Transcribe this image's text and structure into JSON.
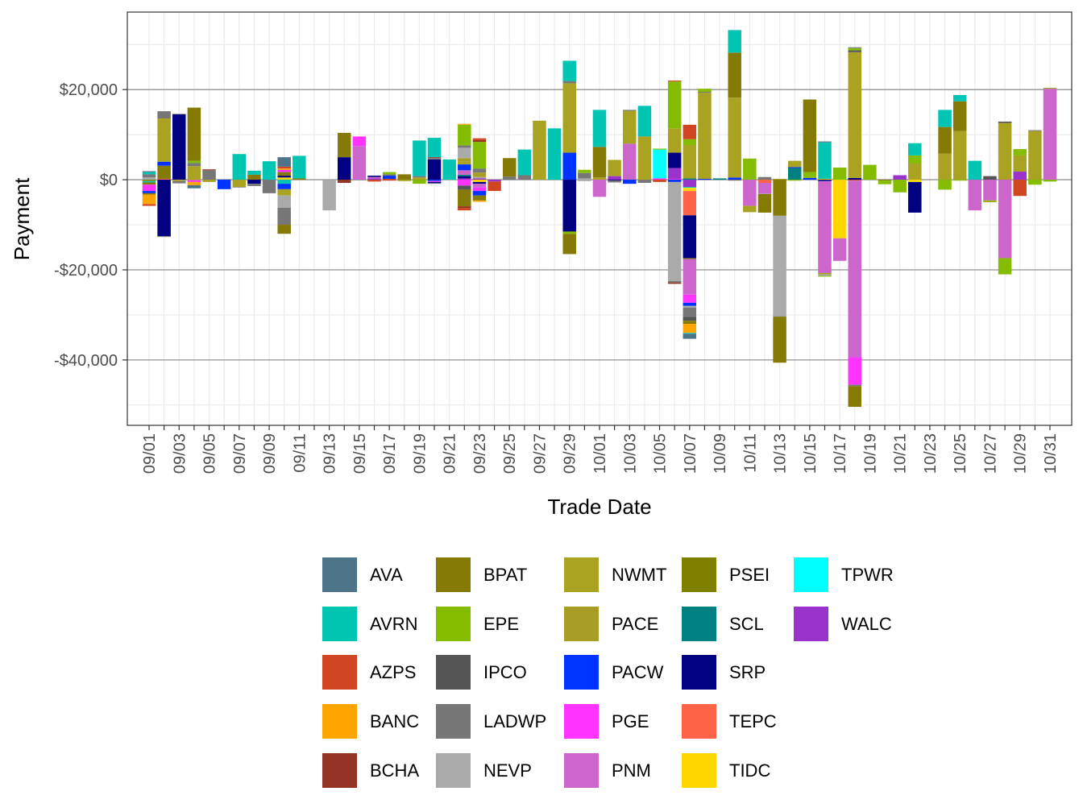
{
  "chart_data": {
    "type": "bar",
    "stacked": true,
    "xlabel": "Trade Date",
    "ylabel": "Payment",
    "ylim": [
      -54500,
      37200
    ],
    "y_ticks": [
      20000,
      0,
      -20000,
      -40000
    ],
    "y_tick_labels": [
      "$20,000",
      "$0",
      "-$20,000",
      "-$40,000"
    ],
    "grid": true,
    "legend_position": "bottom",
    "categories": [
      "09/01",
      "09/02",
      "09/03",
      "09/04",
      "09/05",
      "09/06",
      "09/07",
      "09/08",
      "09/09",
      "09/10",
      "09/11",
      "09/12",
      "09/13",
      "09/14",
      "09/15",
      "09/16",
      "09/17",
      "09/18",
      "09/19",
      "09/20",
      "09/21",
      "09/22",
      "09/23",
      "09/24",
      "09/25",
      "09/26",
      "09/27",
      "09/28",
      "09/29",
      "09/30",
      "10/01",
      "10/02",
      "10/03",
      "10/04",
      "10/05",
      "10/06",
      "10/07",
      "10/08",
      "10/09",
      "10/10",
      "10/11",
      "10/12",
      "10/13",
      "10/14",
      "10/15",
      "10/16",
      "10/17",
      "10/18",
      "10/19",
      "10/20",
      "10/21",
      "10/22",
      "10/23",
      "10/24",
      "10/25",
      "10/26",
      "10/27",
      "10/28",
      "10/29",
      "10/30",
      "10/31"
    ],
    "x_tick_labels": [
      "09/01",
      "09/03",
      "09/05",
      "09/07",
      "09/09",
      "09/11",
      "09/13",
      "09/15",
      "09/17",
      "09/19",
      "09/21",
      "09/23",
      "09/25",
      "09/27",
      "09/29",
      "10/01",
      "10/03",
      "10/05",
      "10/07",
      "10/09",
      "10/11",
      "10/13",
      "10/15",
      "10/17",
      "10/19",
      "10/21",
      "10/23",
      "10/25",
      "10/27",
      "10/29",
      "10/31"
    ],
    "series": [
      {
        "name": "AVA",
        "color": "#4E7489"
      },
      {
        "name": "AVRN",
        "color": "#00C5B3"
      },
      {
        "name": "AZPS",
        "color": "#D04622"
      },
      {
        "name": "BANC",
        "color": "#FFA500"
      },
      {
        "name": "BCHA",
        "color": "#943323"
      },
      {
        "name": "BPAT",
        "color": "#857A03"
      },
      {
        "name": "EPE",
        "color": "#84BD00"
      },
      {
        "name": "IPCO",
        "color": "#555555"
      },
      {
        "name": "LADWP",
        "color": "#777777"
      },
      {
        "name": "NEVP",
        "color": "#AAAAAA"
      },
      {
        "name": "NWMT",
        "color": "#AAA322"
      },
      {
        "name": "PACE",
        "color": "#A89E25"
      },
      {
        "name": "PACW",
        "color": "#0033FF"
      },
      {
        "name": "PGE",
        "color": "#FF33FF"
      },
      {
        "name": "PNM",
        "color": "#CC66CC"
      },
      {
        "name": "PSEI",
        "color": "#808000"
      },
      {
        "name": "SCL",
        "color": "#008080"
      },
      {
        "name": "SRP",
        "color": "#000080"
      },
      {
        "name": "TEPC",
        "color": "#FF6347"
      },
      {
        "name": "TIDC",
        "color": "#FFD700"
      },
      {
        "name": "TPWR",
        "color": "#00FFFF"
      },
      {
        "name": "WALC",
        "color": "#9933CC"
      }
    ],
    "bars": {
      "09/01": [
        [
          "NEVP",
          500
        ],
        [
          "LADWP",
          700
        ],
        [
          "AVRN",
          500
        ],
        [
          "AVA",
          200
        ],
        [
          "PSEI",
          -300
        ],
        [
          "AVRN",
          -300
        ],
        [
          "BPAT",
          -500
        ],
        [
          "PGE",
          -1400
        ],
        [
          "PACW",
          -500
        ],
        [
          "BPAT",
          -300
        ],
        [
          "BANC",
          -2100
        ],
        [
          "AZPS",
          -400
        ]
      ],
      "09/02": [
        [
          "TEPC",
          200
        ],
        [
          "BPAT",
          2900
        ],
        [
          "PACW",
          900
        ],
        [
          "NWMT",
          9600
        ],
        [
          "LADWP",
          1600
        ],
        [
          "SRP",
          -12500
        ],
        [
          "LADWP",
          -200
        ]
      ],
      "09/03": [
        [
          "SRP",
          14500
        ],
        [
          "NEVP",
          200
        ],
        [
          "NWMT",
          -300
        ],
        [
          "LADWP",
          -500
        ]
      ],
      "09/04": [
        [
          "NWMT",
          200
        ],
        [
          "NWMT",
          2800
        ],
        [
          "LADWP",
          700
        ],
        [
          "EPE",
          500
        ],
        [
          "BPAT",
          11800
        ],
        [
          "NWMT",
          -100
        ],
        [
          "PGE",
          -400
        ],
        [
          "BANC",
          -700
        ],
        [
          "AVA",
          -700
        ]
      ],
      "09/05": [
        [
          "LADWP",
          2100
        ],
        [
          "BCHA",
          200
        ],
        [
          "NWMT",
          -500
        ]
      ],
      "09/06": [
        [
          "PACW",
          -2100
        ]
      ],
      "09/07": [
        [
          "AVRN",
          5700
        ],
        [
          "NWMT",
          -1600
        ],
        [
          "IPCO",
          -100
        ]
      ],
      "09/08": [
        [
          "BPAT",
          1100
        ],
        [
          "AVRN",
          900
        ],
        [
          "SRP",
          -900
        ],
        [
          "LADWP",
          -500
        ]
      ],
      "09/09": [
        [
          "AVRN",
          4100
        ],
        [
          "LADWP",
          -3000
        ]
      ],
      "09/10": [
        [
          "TIDC",
          500
        ],
        [
          "SRP",
          400
        ],
        [
          "BPAT",
          800
        ],
        [
          "PGE",
          500
        ],
        [
          "BANC",
          300
        ],
        [
          "AZPS",
          400
        ],
        [
          "AVA",
          2100
        ],
        [
          "AVRN",
          -900
        ],
        [
          "PACW",
          -1200
        ],
        [
          "NWMT",
          -1400
        ],
        [
          "NEVP",
          -2700
        ],
        [
          "LADWP",
          -3800
        ],
        [
          "BPAT",
          -2000
        ]
      ],
      "09/11": [
        [
          "BPAT",
          300
        ],
        [
          "AVRN",
          5000
        ]
      ],
      "09/13": [
        [
          "NEVP",
          -6800
        ]
      ],
      "09/14": [
        [
          "SRP",
          5000
        ],
        [
          "BPAT",
          5400
        ],
        [
          "BCHA",
          -700
        ]
      ],
      "09/15": [
        [
          "PNM",
          7500
        ],
        [
          "PGE",
          2100
        ],
        [
          "LADWP",
          -100
        ]
      ],
      "09/16": [
        [
          "WALC",
          300
        ],
        [
          "PNM",
          300
        ],
        [
          "SRP",
          300
        ],
        [
          "AZPS",
          -400
        ]
      ],
      "09/17": [
        [
          "AZPS",
          200
        ],
        [
          "PACW",
          700
        ],
        [
          "LADWP",
          300
        ],
        [
          "EPE",
          500
        ],
        [
          "AZPS",
          -200
        ]
      ],
      "09/18": [
        [
          "BPAT",
          1200
        ],
        [
          "NWMT",
          -300
        ]
      ],
      "09/19": [
        [
          "NWMT",
          500
        ],
        [
          "LADWP",
          300
        ],
        [
          "AVRN",
          7900
        ],
        [
          "EPE",
          -900
        ]
      ],
      "09/20": [
        [
          "SRP",
          4500
        ],
        [
          "LADWP",
          300
        ],
        [
          "BCHA",
          200
        ],
        [
          "AVRN",
          4300
        ],
        [
          "PACW",
          -300
        ],
        [
          "PGE",
          -200
        ],
        [
          "SRP",
          -200
        ],
        [
          "AVA",
          -200
        ]
      ],
      "09/21": [
        [
          "AVRN",
          4500
        ]
      ],
      "09/22": [
        [
          "WALC",
          300
        ],
        [
          "SRP",
          500
        ],
        [
          "SCL",
          300
        ],
        [
          "PNM",
          1000
        ],
        [
          "PACW",
          1300
        ],
        [
          "NWMT",
          700
        ],
        [
          "PACE",
          700
        ],
        [
          "NEVP",
          2300
        ],
        [
          "LADWP",
          500
        ],
        [
          "EPE",
          4600
        ],
        [
          "BANC",
          200
        ],
        [
          "PGE",
          -1300
        ],
        [
          "IPCO",
          -900
        ],
        [
          "BPAT",
          -3700
        ],
        [
          "BCHA",
          -400
        ],
        [
          "AZPS",
          -500
        ]
      ],
      "09/23": [
        [
          "WALC",
          300
        ],
        [
          "NEVP",
          300
        ],
        [
          "PACE",
          1000
        ],
        [
          "LADWP",
          900
        ],
        [
          "EPE",
          5900
        ],
        [
          "BCHA",
          400
        ],
        [
          "AZPS",
          400
        ],
        [
          "TIDC",
          -500
        ],
        [
          "SRP",
          -400
        ],
        [
          "PNM",
          -800
        ],
        [
          "PGE",
          -800
        ],
        [
          "PACW",
          -1000
        ],
        [
          "BPAT",
          -1100
        ],
        [
          "BANC",
          -300
        ]
      ],
      "09/24": [
        [
          "WALC",
          -400
        ],
        [
          "AZPS",
          -2100
        ]
      ],
      "09/25": [
        [
          "LADWP",
          700
        ],
        [
          "BPAT",
          4100
        ]
      ],
      "09/26": [
        [
          "LADWP",
          1000
        ],
        [
          "AVRN",
          5700
        ]
      ],
      "09/27": [
        [
          "NWMT",
          13100
        ]
      ],
      "09/28": [
        [
          "AVRN",
          11400
        ]
      ],
      "09/29": [
        [
          "PACW",
          6000
        ],
        [
          "NWMT",
          15400
        ],
        [
          "LADWP",
          500
        ],
        [
          "AVRN",
          4500
        ],
        [
          "SRP",
          -11500
        ],
        [
          "EPE",
          -500
        ],
        [
          "BPAT",
          -4500
        ]
      ],
      "09/30": [
        [
          "NEVP",
          300
        ],
        [
          "LADWP",
          1200
        ],
        [
          "EPE",
          700
        ],
        [
          "NEVP",
          -300
        ]
      ],
      "10/01": [
        [
          "NWMT",
          500
        ],
        [
          "BPAT",
          6800
        ],
        [
          "AVRN",
          8200
        ],
        [
          "PNM",
          -3800
        ]
      ],
      "10/02": [
        [
          "WALC",
          800
        ],
        [
          "NWMT",
          3600
        ],
        [
          "SRP",
          -200
        ],
        [
          "LADWP",
          -400
        ]
      ],
      "10/03": [
        [
          "PNM",
          8000
        ],
        [
          "NWMT",
          7300
        ],
        [
          "LADWP",
          200
        ],
        [
          "PACW",
          -900
        ]
      ],
      "10/04": [
        [
          "NWMT",
          9600
        ],
        [
          "AVRN",
          6800
        ],
        [
          "LADWP",
          -700
        ]
      ],
      "10/05": [
        [
          "PGE",
          300
        ],
        [
          "TPWR",
          6400
        ],
        [
          "EPE",
          200
        ],
        [
          "AZPS",
          -500
        ]
      ],
      "10/06": [
        [
          "PGE",
          200
        ],
        [
          "WALC",
          2400
        ],
        [
          "SRP",
          3400
        ],
        [
          "NWMT",
          5400
        ],
        [
          "EPE",
          10400
        ],
        [
          "AZPS",
          200
        ],
        [
          "PACW",
          -500
        ],
        [
          "NEVP",
          -22000
        ],
        [
          "LADWP",
          -300
        ],
        [
          "BCHA",
          -300
        ]
      ],
      "10/07": [
        [
          "SCL",
          300
        ],
        [
          "NWMT",
          7400
        ],
        [
          "EPE",
          1300
        ],
        [
          "AZPS",
          3200
        ],
        [
          "WALC",
          -1600
        ],
        [
          "AVRN",
          -200
        ],
        [
          "TIDC",
          -700
        ],
        [
          "TEPC",
          -5400
        ],
        [
          "SRP",
          -9500
        ],
        [
          "BPAT",
          -200
        ],
        [
          "PNM",
          -7900
        ],
        [
          "PGE",
          -1800
        ],
        [
          "PACW",
          -700
        ],
        [
          "NEVP",
          -400
        ],
        [
          "LADWP",
          -2000
        ],
        [
          "IPCO",
          -900
        ],
        [
          "BPAT",
          -700
        ],
        [
          "BANC",
          -2000
        ],
        [
          "AVRN",
          -200
        ],
        [
          "AVA",
          -1100
        ]
      ],
      "10/08": [
        [
          "PACW",
          200
        ],
        [
          "NWMT",
          19100
        ],
        [
          "LADWP",
          200
        ],
        [
          "EPE",
          700
        ]
      ],
      "10/09": [
        [
          "SCL",
          300
        ]
      ],
      "10/10": [
        [
          "PACW",
          500
        ],
        [
          "NWMT",
          17700
        ],
        [
          "BPAT",
          10000
        ],
        [
          "AVRN",
          5000
        ],
        [
          "LADWP",
          -200
        ]
      ],
      "10/11": [
        [
          "EPE",
          4700
        ],
        [
          "PNM",
          -5800
        ],
        [
          "NWMT",
          -1400
        ]
      ],
      "10/12": [
        [
          "LADWP",
          600
        ],
        [
          "TEPC",
          -700
        ],
        [
          "PNM",
          -2400
        ],
        [
          "NEVP",
          -100
        ],
        [
          "BPAT",
          -4100
        ]
      ],
      "10/13": [
        [
          "NWMT",
          200
        ],
        [
          "BPAT",
          -8000
        ],
        [
          "NEVP",
          -22300
        ],
        [
          "LADWP",
          -100
        ],
        [
          "BPAT",
          -10200
        ]
      ],
      "10/14": [
        [
          "SCL",
          2600
        ],
        [
          "PACW",
          200
        ],
        [
          "NWMT",
          1400
        ],
        [
          "EPE",
          -200
        ]
      ],
      "10/15": [
        [
          "PACW",
          400
        ],
        [
          "EPE",
          1300
        ],
        [
          "BPAT",
          16100
        ]
      ],
      "10/16": [
        [
          "TIDC",
          200
        ],
        [
          "AVRN",
          8100
        ],
        [
          "AVA",
          200
        ],
        [
          "SRP",
          -300
        ],
        [
          "PNM",
          -20400
        ],
        [
          "NWMT",
          -300
        ],
        [
          "NEVP",
          -300
        ],
        [
          "EPE",
          -200
        ]
      ],
      "10/17": [
        [
          "EPE",
          2700
        ],
        [
          "TIDC",
          -13000
        ],
        [
          "PNM",
          -5000
        ]
      ],
      "10/18": [
        [
          "SRP",
          400
        ],
        [
          "NWMT",
          27900
        ],
        [
          "IPCO",
          400
        ],
        [
          "EPE",
          500
        ],
        [
          "LADWP",
          200
        ],
        [
          "AZPS",
          -200
        ],
        [
          "PNM",
          -39200
        ],
        [
          "PGE",
          -6100
        ],
        [
          "LADWP",
          -300
        ],
        [
          "BPAT",
          -4600
        ]
      ],
      "10/19": [
        [
          "EPE",
          3300
        ]
      ],
      "10/20": [
        [
          "BPAT",
          -200
        ],
        [
          "EPE",
          -800
        ]
      ],
      "10/21": [
        [
          "WALC",
          1000
        ],
        [
          "EPE",
          -2800
        ]
      ],
      "10/22": [
        [
          "NWMT",
          3600
        ],
        [
          "EPE",
          1800
        ],
        [
          "AVRN",
          2700
        ],
        [
          "TIDC",
          -500
        ],
        [
          "SRP",
          -6800
        ]
      ],
      "10/24": [
        [
          "NWMT",
          5800
        ],
        [
          "BPAT",
          5900
        ],
        [
          "AVRN",
          3800
        ],
        [
          "EPE",
          -2200
        ]
      ],
      "10/25": [
        [
          "NWMT",
          10800
        ],
        [
          "BPAT",
          6600
        ],
        [
          "AVRN",
          1400
        ],
        [
          "EPE",
          -200
        ]
      ],
      "10/26": [
        [
          "AVRN",
          4200
        ],
        [
          "PNM",
          -6800
        ]
      ],
      "10/27": [
        [
          "IPCO",
          800
        ],
        [
          "PNM",
          -4600
        ],
        [
          "EPE",
          -200
        ],
        [
          "NWMT",
          -200
        ]
      ],
      "10/28": [
        [
          "NWMT",
          12600
        ],
        [
          "IPCO",
          300
        ],
        [
          "PNM",
          -17400
        ],
        [
          "EPE",
          -3600
        ]
      ],
      "10/29": [
        [
          "WALC",
          1800
        ],
        [
          "NWMT",
          3600
        ],
        [
          "EPE",
          1400
        ],
        [
          "AZPS",
          -3600
        ]
      ],
      "10/30": [
        [
          "NWMT",
          10800
        ],
        [
          "LADWP",
          200
        ],
        [
          "EPE",
          -1100
        ]
      ],
      "10/31": [
        [
          "PNM",
          20200
        ],
        [
          "NWMT",
          200
        ],
        [
          "EPE",
          -400
        ]
      ]
    }
  }
}
